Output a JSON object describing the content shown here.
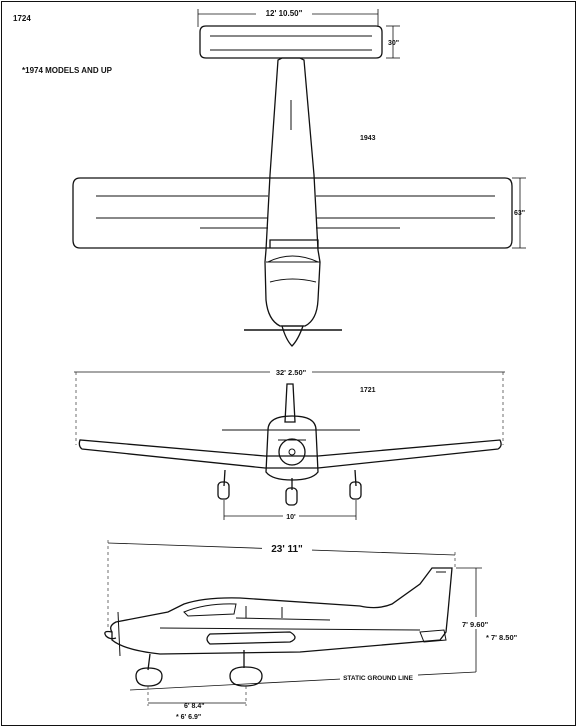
{
  "page": {
    "code_top_left": "1724",
    "note": "*1974 MODELS AND UP",
    "code_top_view": "1943",
    "code_front_view": "1721"
  },
  "top_view": {
    "stabilator_span": "12' 10.50\"",
    "stabilator_chord": "30\"",
    "wing_chord": "63\""
  },
  "front_view": {
    "wing_span": "32' 2.50\"",
    "wheel_track": "10'"
  },
  "side_view": {
    "length": "23' 11\"",
    "height": "7' 9.60\"",
    "height_alt": "* 7' 8.50\"",
    "wheelbase": "6' 8.4\"",
    "wheelbase_alt": "* 6' 6.9\"",
    "ground_line": "STATIC GROUND LINE"
  }
}
